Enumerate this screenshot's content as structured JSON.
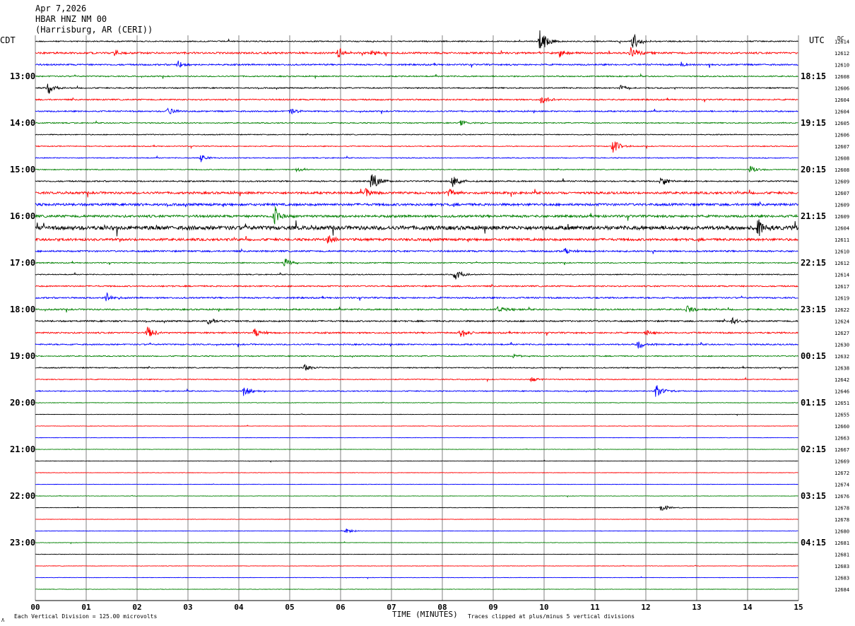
{
  "header": {
    "date": "Apr 7,2026",
    "station": "HBAR HNZ NM 00",
    "location": "(Harrisburg, AR (CERI))"
  },
  "labels": {
    "left_tz": "CDT",
    "right_tz": "UTC",
    "dc_header": "DC",
    "x_axis_title": "TIME (MINUTES)",
    "scale_note": "Each Vertical Division =  125.00 microvolts",
    "clip_note": "Traces clipped at plus/minus 5 vertical divisions",
    "footer_mark": "Λ"
  },
  "colors": {
    "cycle": [
      "#000000",
      "#ff0000",
      "#0000ff",
      "#008000"
    ],
    "grid": "#808080"
  },
  "chart_data": {
    "type": "helicorder",
    "title": "HBAR HNZ NM 00",
    "xlabel": "TIME (MINUTES)",
    "x_ticks": [
      "00",
      "01",
      "02",
      "03",
      "04",
      "05",
      "06",
      "07",
      "08",
      "09",
      "10",
      "11",
      "12",
      "13",
      "14",
      "15"
    ],
    "x_range": [
      0,
      15
    ],
    "minutes_per_line": 15,
    "row_count": 48,
    "start_time_cdt": "12:15",
    "left_hour_labels": [
      {
        "row": 3,
        "label": "13:00"
      },
      {
        "row": 7,
        "label": "14:00"
      },
      {
        "row": 11,
        "label": "15:00"
      },
      {
        "row": 15,
        "label": "16:00"
      },
      {
        "row": 19,
        "label": "17:00"
      },
      {
        "row": 23,
        "label": "18:00"
      },
      {
        "row": 27,
        "label": "19:00"
      },
      {
        "row": 31,
        "label": "20:00"
      },
      {
        "row": 35,
        "label": "21:00"
      },
      {
        "row": 39,
        "label": "22:00"
      },
      {
        "row": 43,
        "label": "23:00"
      }
    ],
    "right_hour_labels": [
      {
        "row": 3,
        "label": "18:15"
      },
      {
        "row": 7,
        "label": "19:15"
      },
      {
        "row": 11,
        "label": "20:15"
      },
      {
        "row": 15,
        "label": "21:15"
      },
      {
        "row": 19,
        "label": "22:15"
      },
      {
        "row": 23,
        "label": "23:15"
      },
      {
        "row": 27,
        "label": "00:15"
      },
      {
        "row": 31,
        "label": "01:15"
      },
      {
        "row": 35,
        "label": "02:15"
      },
      {
        "row": 39,
        "label": "03:15"
      },
      {
        "row": 43,
        "label": "04:15"
      }
    ],
    "dc_offsets": [
      "12614",
      "12612",
      "12610",
      "12608",
      "12606",
      "12604",
      "12604",
      "12605",
      "12606",
      "12607",
      "12608",
      "12608",
      "12609",
      "12607",
      "12609",
      "12609",
      "12604",
      "12611",
      "12610",
      "12612",
      "12614",
      "12617",
      "12619",
      "12622",
      "12624",
      "12627",
      "12630",
      "12632",
      "12638",
      "12642",
      "12646",
      "12651",
      "12655",
      "12660",
      "12663",
      "12667",
      "12669",
      "12672",
      "12674",
      "12676",
      "12678",
      "12678",
      "12680",
      "12681",
      "12681",
      "12683",
      "12683",
      "12684"
    ],
    "noise_level": [
      0.8,
      1.2,
      1.0,
      0.8,
      0.8,
      0.9,
      0.9,
      0.7,
      0.6,
      0.6,
      0.6,
      0.6,
      0.9,
      1.5,
      1.6,
      1.6,
      2.6,
      1.6,
      1.1,
      0.7,
      0.6,
      0.9,
      1.0,
      1.0,
      1.0,
      1.0,
      0.9,
      0.7,
      0.7,
      0.6,
      0.7,
      0.4,
      0.3,
      0.3,
      0.3,
      0.3,
      0.3,
      0.3,
      0.3,
      0.3,
      0.3,
      0.3,
      0.3,
      0.3,
      0.3,
      0.3,
      0.3,
      0.3
    ],
    "events": [
      {
        "row": 0,
        "minute": 9.92,
        "amp": 18
      },
      {
        "row": 0,
        "minute": 11.75,
        "amp": 14
      },
      {
        "row": 1,
        "minute": 1.55,
        "amp": 5
      },
      {
        "row": 1,
        "minute": 5.95,
        "amp": 8
      },
      {
        "row": 1,
        "minute": 6.6,
        "amp": 4
      },
      {
        "row": 1,
        "minute": 10.3,
        "amp": 6
      },
      {
        "row": 1,
        "minute": 11.7,
        "amp": 9
      },
      {
        "row": 2,
        "minute": 2.8,
        "amp": 6
      },
      {
        "row": 2,
        "minute": 12.7,
        "amp": 4
      },
      {
        "row": 4,
        "minute": 0.25,
        "amp": 9
      },
      {
        "row": 4,
        "minute": 11.5,
        "amp": 5
      },
      {
        "row": 5,
        "minute": 9.95,
        "amp": 7
      },
      {
        "row": 6,
        "minute": 2.6,
        "amp": 7
      },
      {
        "row": 6,
        "minute": 5.0,
        "amp": 5
      },
      {
        "row": 7,
        "minute": 8.35,
        "amp": 4
      },
      {
        "row": 9,
        "minute": 11.35,
        "amp": 10
      },
      {
        "row": 10,
        "minute": 3.25,
        "amp": 6
      },
      {
        "row": 11,
        "minute": 5.15,
        "amp": 4
      },
      {
        "row": 11,
        "minute": 14.05,
        "amp": 7
      },
      {
        "row": 12,
        "minute": 6.6,
        "amp": 16
      },
      {
        "row": 12,
        "minute": 8.2,
        "amp": 9
      },
      {
        "row": 12,
        "minute": 12.3,
        "amp": 8
      },
      {
        "row": 13,
        "minute": 6.5,
        "amp": 10
      },
      {
        "row": 13,
        "minute": 8.1,
        "amp": 8
      },
      {
        "row": 15,
        "minute": 4.7,
        "amp": 15
      },
      {
        "row": 16,
        "minute": 14.2,
        "amp": 12
      },
      {
        "row": 17,
        "minute": 5.75,
        "amp": 8
      },
      {
        "row": 18,
        "minute": 10.4,
        "amp": 5
      },
      {
        "row": 19,
        "minute": 4.9,
        "amp": 7
      },
      {
        "row": 20,
        "minute": 8.25,
        "amp": 10
      },
      {
        "row": 22,
        "minute": 1.4,
        "amp": 9
      },
      {
        "row": 23,
        "minute": 9.1,
        "amp": 5
      },
      {
        "row": 23,
        "minute": 12.8,
        "amp": 7
      },
      {
        "row": 24,
        "minute": 3.4,
        "amp": 6
      },
      {
        "row": 24,
        "minute": 13.7,
        "amp": 7
      },
      {
        "row": 25,
        "minute": 2.2,
        "amp": 9
      },
      {
        "row": 25,
        "minute": 4.3,
        "amp": 7
      },
      {
        "row": 25,
        "minute": 8.35,
        "amp": 8
      },
      {
        "row": 25,
        "minute": 12.0,
        "amp": 5
      },
      {
        "row": 26,
        "minute": 11.85,
        "amp": 7
      },
      {
        "row": 27,
        "minute": 9.4,
        "amp": 4
      },
      {
        "row": 28,
        "minute": 5.3,
        "amp": 5
      },
      {
        "row": 29,
        "minute": 9.75,
        "amp": 4
      },
      {
        "row": 30,
        "minute": 4.1,
        "amp": 8
      },
      {
        "row": 30,
        "minute": 12.2,
        "amp": 10
      },
      {
        "row": 40,
        "minute": 12.3,
        "amp": 6
      },
      {
        "row": 42,
        "minute": 6.1,
        "amp": 4
      }
    ]
  }
}
